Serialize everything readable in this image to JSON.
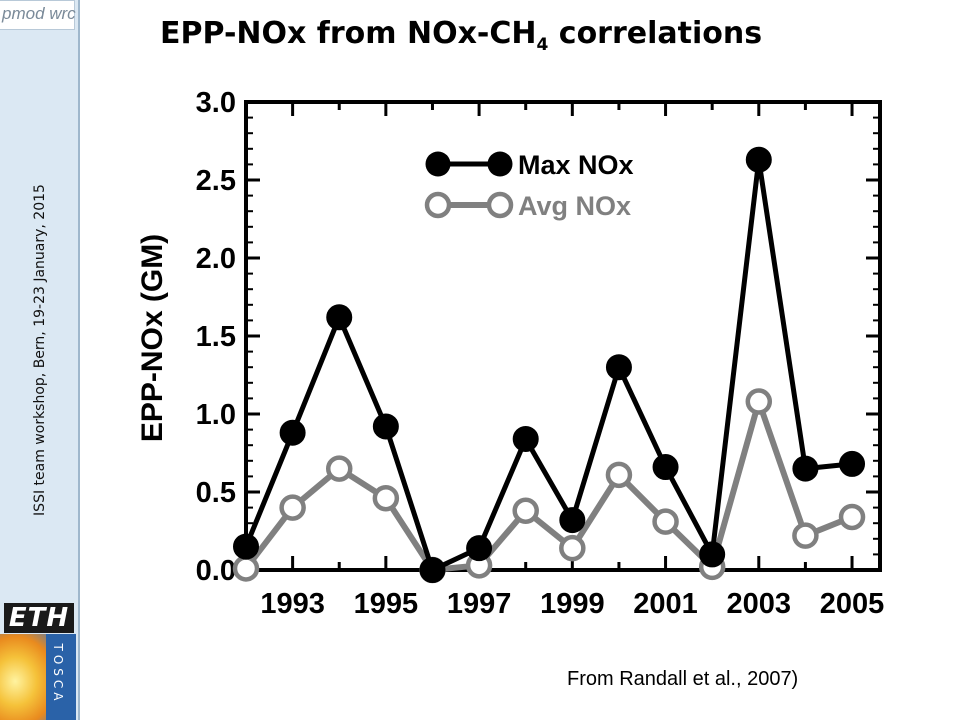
{
  "slide": {
    "title_main": "EPP-NOx from NOx-CH",
    "title_sub": "4",
    "title_end": " correlations",
    "caption": "From Randall et al., 2007)",
    "sidebar_text": "ISSI team workshop, Bern, 19-23  January,  2015",
    "logo_text": "pmod wrc",
    "eth_logo": "ETH",
    "tosca_logo": "TOSCA"
  },
  "chart_data": {
    "type": "line",
    "title": "",
    "ylabel": "EPP-NOx (GM)",
    "xlabel": "",
    "ylim": [
      0.0,
      3.0
    ],
    "xlim": [
      1992,
      2005.6
    ],
    "x": [
      1992,
      1993,
      1994,
      1995,
      1996,
      1997,
      1998,
      1999,
      2000,
      2001,
      2002,
      2003,
      2004,
      2005
    ],
    "xticks": [
      "1993",
      "1995",
      "1997",
      "1999",
      "2001",
      "2003",
      "2005"
    ],
    "xtick_values": [
      1993,
      1995,
      1997,
      1999,
      2001,
      2003,
      2005
    ],
    "yticks": [
      "0.0",
      "0.5",
      "1.0",
      "1.5",
      "2.0",
      "2.5",
      "3.0"
    ],
    "ytick_values": [
      0.0,
      0.5,
      1.0,
      1.5,
      2.0,
      2.5,
      3.0
    ],
    "series": [
      {
        "name": "Max NOx",
        "color": "#000000",
        "marker": "filled-circle",
        "values": [
          0.15,
          0.88,
          1.62,
          0.92,
          0.0,
          0.14,
          0.84,
          0.32,
          1.3,
          0.66,
          0.1,
          2.63,
          0.65,
          0.68
        ]
      },
      {
        "name": "Avg NOx",
        "color": "#808080",
        "marker": "open-circle",
        "values": [
          0.01,
          0.4,
          0.65,
          0.46,
          0.0,
          0.03,
          0.38,
          0.14,
          0.61,
          0.31,
          0.02,
          1.08,
          0.22,
          0.34
        ]
      }
    ],
    "legend_position": "top-left"
  }
}
